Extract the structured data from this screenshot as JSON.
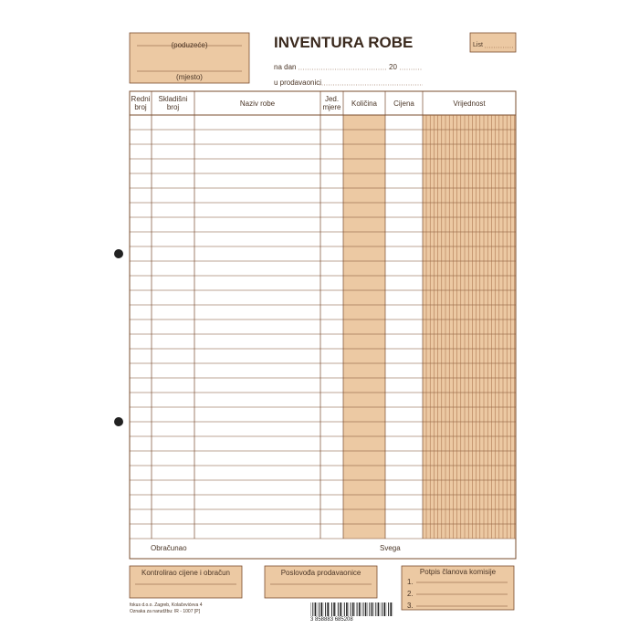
{
  "header": {
    "company_label": "(poduzeće)",
    "place_label": "(mjesto)",
    "title": "INVENTURA ROBE",
    "date_label": "na dan",
    "year_label": "20",
    "shop_label": "u prodavaonici",
    "sheet_label": "List"
  },
  "table": {
    "columns": [
      "Redni broj",
      "Skladišni broj",
      "Naziv robe",
      "Jed. mjere",
      "Količina",
      "Cijena",
      "Vrijednost"
    ],
    "footer": [
      "Obračunao",
      "Svega"
    ]
  },
  "signatures": [
    "Kontrolirao cijene i obračun",
    "Poslovođa prodavaonice",
    "Potpis članova komisije"
  ],
  "commission": {
    "lines": [
      "1.",
      "2.",
      "3."
    ]
  },
  "printer": {
    "lines": [
      "fokus d.o.o. Zagreb, Kolačevićeva 4",
      "Oznaka za narudžbu: IR - 1007 [P]"
    ]
  },
  "barcode": "3 858883 685208"
}
